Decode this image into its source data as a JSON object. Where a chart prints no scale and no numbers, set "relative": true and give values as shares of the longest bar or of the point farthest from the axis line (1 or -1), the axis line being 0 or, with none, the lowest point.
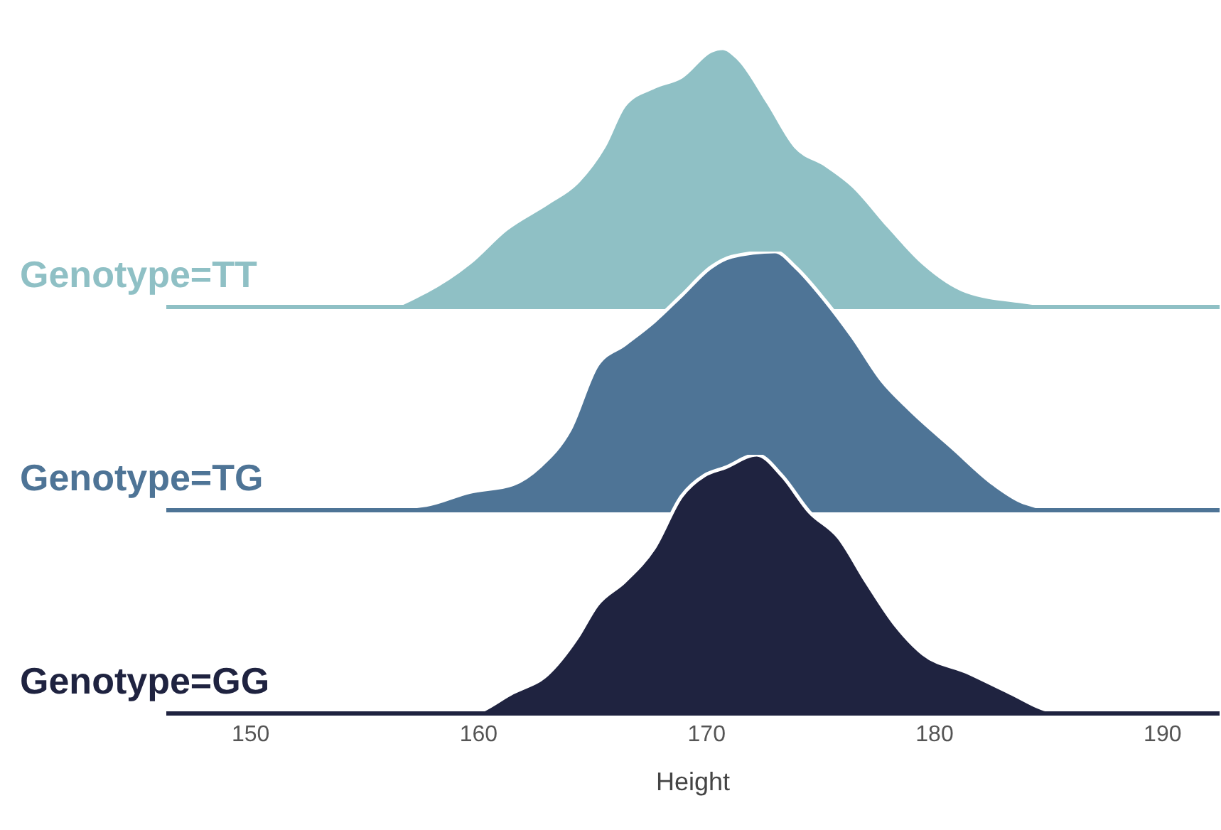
{
  "chart_data": [
    {
      "type": "area",
      "title": "Genotype=TT",
      "color": "#8fc0c5",
      "relative": true,
      "xlim": [
        146.3,
        192.5
      ],
      "tick_labels": false,
      "x": [
        146.3,
        155.9,
        157.7,
        159.6,
        161.2,
        163.0,
        164.3,
        165.5,
        166.4,
        167.7,
        168.9,
        170.2,
        170.7,
        171.4,
        172.7,
        173.9,
        175.2,
        176.4,
        178.0,
        179.5,
        181.4,
        183.9,
        186.4,
        192.5
      ],
      "values": [
        0,
        0,
        0.06,
        0.17,
        0.3,
        0.4,
        0.48,
        0.62,
        0.78,
        0.85,
        0.89,
        0.99,
        1,
        0.96,
        0.79,
        0.62,
        0.55,
        0.47,
        0.31,
        0.17,
        0.06,
        0.02,
        0,
        0
      ]
    },
    {
      "type": "area",
      "title": "Genotype=TG",
      "color": "#4e7496",
      "relative": true,
      "xlim": [
        146.3,
        192.5
      ],
      "tick_labels": false,
      "x": [
        146.3,
        154.6,
        157.7,
        159.6,
        161.5,
        162.7,
        164.0,
        165.2,
        166.4,
        167.7,
        168.9,
        170.2,
        171.1,
        173.0,
        173.9,
        175.2,
        176.4,
        177.7,
        178.9,
        180.8,
        182.6,
        183.9,
        185.8,
        192.5
      ],
      "values": [
        0,
        0,
        0.02,
        0.07,
        0.1,
        0.17,
        0.31,
        0.56,
        0.64,
        0.73,
        0.83,
        0.94,
        0.98,
        1,
        0.94,
        0.81,
        0.67,
        0.5,
        0.39,
        0.24,
        0.1,
        0.03,
        0,
        0
      ]
    },
    {
      "type": "area",
      "title": "Genotype=GG",
      "color": "#1f2340",
      "relative": true,
      "xlim": [
        146.3,
        192.5
      ],
      "xticks": [
        150,
        160,
        170,
        180,
        190
      ],
      "xlabel": "Height",
      "tick_labels": "x",
      "x": [
        146.3,
        159.6,
        161.5,
        163.0,
        164.3,
        165.2,
        166.4,
        167.7,
        168.9,
        169.9,
        170.8,
        172.2,
        173.3,
        174.5,
        175.8,
        177.0,
        178.3,
        179.5,
        181.4,
        183.3,
        185.1,
        186.4,
        192.5
      ],
      "values": [
        0,
        0,
        0.08,
        0.15,
        0.29,
        0.42,
        0.51,
        0.64,
        0.84,
        0.92,
        0.95,
        1,
        0.92,
        0.78,
        0.68,
        0.51,
        0.34,
        0.23,
        0.16,
        0.08,
        0.01,
        0,
        0
      ]
    }
  ]
}
